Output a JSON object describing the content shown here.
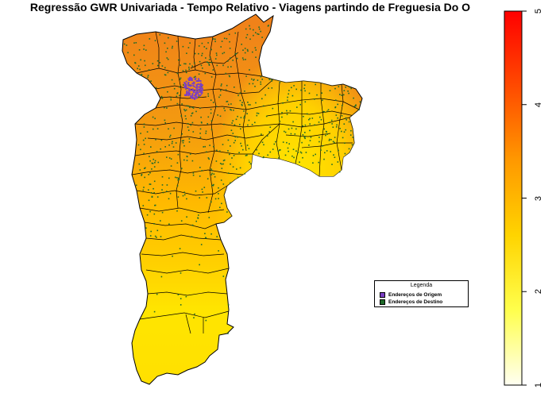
{
  "title": "Regressão GWR Univariada - Tempo Relativo - Viagens partindo de Freguesia Do O",
  "legend": {
    "title": "Legenda",
    "items": [
      {
        "label": "Endereços de Origem",
        "color": "#7B3FC4"
      },
      {
        "label": "Endereços de Destino",
        "color": "#1F6B2A"
      }
    ]
  },
  "colorbar": {
    "min": 1,
    "max": 5,
    "ticks": [
      "1",
      "2",
      "3",
      "4",
      "5"
    ],
    "colors": [
      "#FFFFF2",
      "#FFFF4D",
      "#FFD400",
      "#FF9900",
      "#FF4A00",
      "#FF0000"
    ]
  },
  "colors": {
    "region_high": "#F08A1A",
    "region_mid": "#FFB000",
    "region_low": "#FFE600",
    "origin_points": "#7B3FC4",
    "destination_points": "#1F6B2A"
  }
}
